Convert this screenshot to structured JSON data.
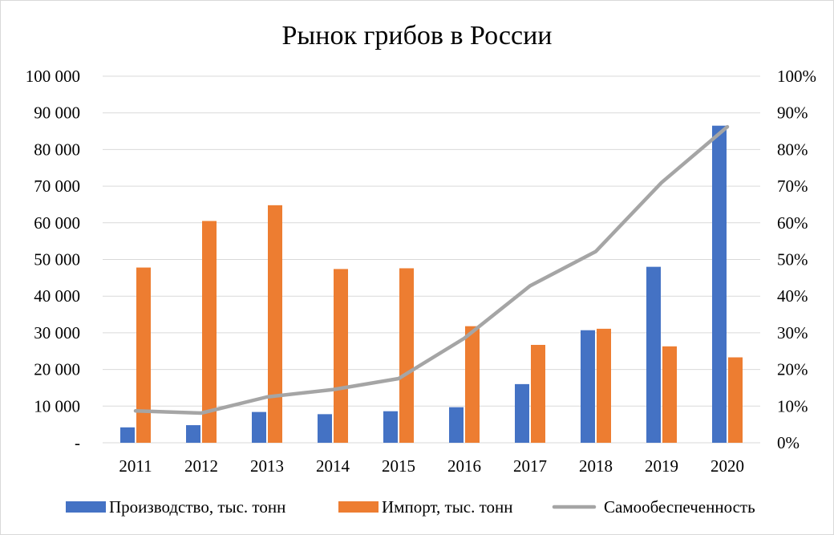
{
  "chart_data": {
    "type": "bar",
    "title": "Рынок грибов в России",
    "categories": [
      "2011",
      "2012",
      "2013",
      "2014",
      "2015",
      "2016",
      "2017",
      "2018",
      "2019",
      "2020"
    ],
    "series": [
      {
        "name": "Производство, тыс. тонн",
        "type": "bar",
        "axis": "left",
        "color": "#4472C4",
        "values": [
          4200,
          4800,
          8400,
          7800,
          8600,
          9700,
          16000,
          30700,
          48000,
          86500
        ]
      },
      {
        "name": "Импорт, тыс. тонн",
        "type": "bar",
        "axis": "left",
        "color": "#ED7D31",
        "values": [
          47800,
          60500,
          64800,
          47400,
          47600,
          31800,
          26700,
          31100,
          26300,
          23300
        ]
      },
      {
        "name": "Самообеспеченность",
        "type": "line",
        "axis": "right",
        "color": "#A5A5A5",
        "values": [
          0.087,
          0.081,
          0.125,
          0.145,
          0.175,
          0.285,
          0.428,
          0.522,
          0.71,
          0.862
        ]
      }
    ],
    "y_left": {
      "min": 0,
      "max": 100000,
      "step": 10000,
      "tick_labels": [
        "-",
        "10 000",
        "20 000",
        "30 000",
        "40 000",
        "50 000",
        "60 000",
        "70 000",
        "80 000",
        "90 000",
        "100 000"
      ]
    },
    "y_right": {
      "min": 0,
      "max": 1,
      "step": 0.1,
      "tick_labels": [
        "0%",
        "10%",
        "20%",
        "30%",
        "40%",
        "50%",
        "60%",
        "70%",
        "80%",
        "90%",
        "100%"
      ]
    },
    "grid": true,
    "legend_position": "bottom"
  }
}
